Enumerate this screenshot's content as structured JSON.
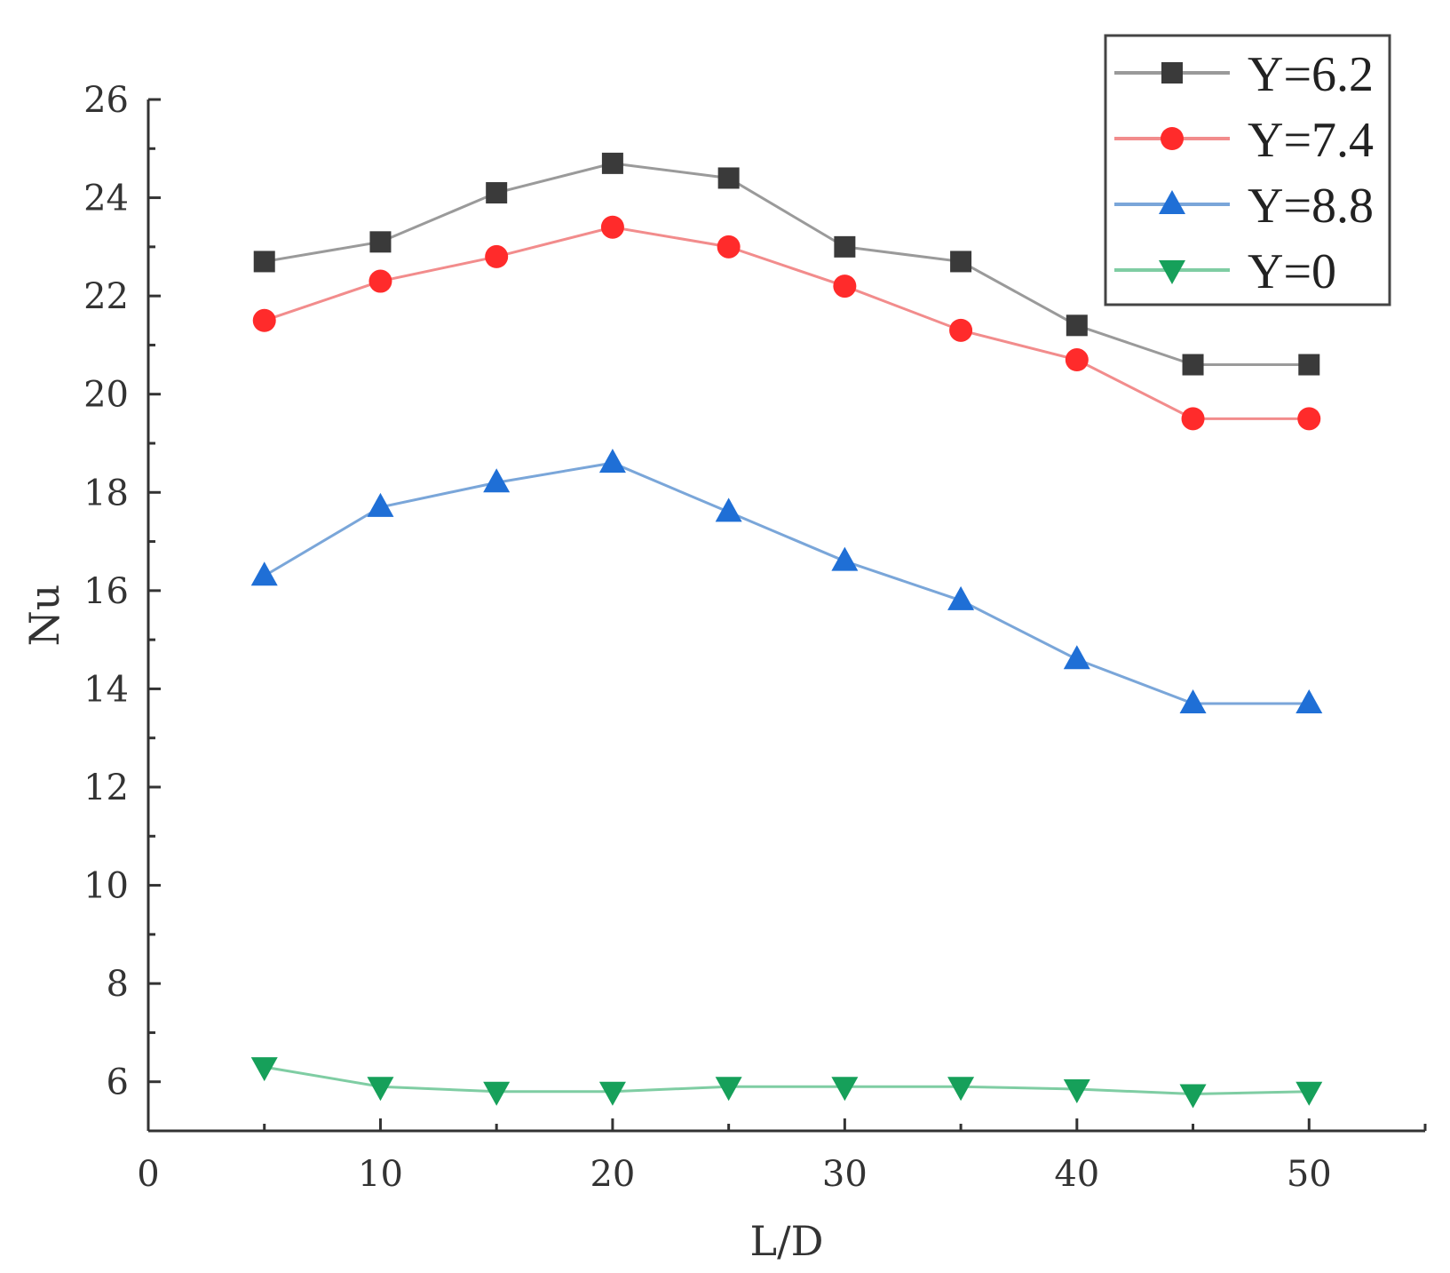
{
  "chart_data": {
    "type": "line",
    "title": "",
    "xlabel": "L/D",
    "ylabel": "Nu",
    "xlim": [
      0,
      55
    ],
    "ylim": [
      5,
      26
    ],
    "xticks": [
      0,
      10,
      20,
      30,
      40,
      50
    ],
    "yticks": [
      6,
      8,
      10,
      12,
      14,
      16,
      18,
      20,
      22,
      24,
      26
    ],
    "x": [
      5,
      10,
      15,
      20,
      25,
      30,
      35,
      40,
      45,
      50
    ],
    "legend_position": "top-right",
    "grid": false,
    "series": [
      {
        "name": "Y=6.2",
        "marker": "square",
        "color": "#3a3a3a",
        "line_color": "#9a9a9a",
        "values": [
          22.7,
          23.1,
          24.1,
          24.7,
          24.4,
          23.0,
          22.7,
          21.4,
          20.6,
          20.6
        ]
      },
      {
        "name": "Y=7.4",
        "marker": "circle",
        "color": "#ff2b2b",
        "line_color": "#f28c8c",
        "values": [
          21.5,
          22.3,
          22.8,
          23.4,
          23.0,
          22.2,
          21.3,
          20.7,
          19.5,
          19.5
        ]
      },
      {
        "name": "Y=8.8",
        "marker": "triangle-up",
        "color": "#1f6fd6",
        "line_color": "#7aa6d9",
        "values": [
          16.3,
          17.7,
          18.2,
          18.6,
          17.6,
          16.6,
          15.8,
          14.6,
          13.7,
          13.7
        ]
      },
      {
        "name": "Y=0",
        "marker": "triangle-down",
        "color": "#16a05a",
        "line_color": "#7fcda3",
        "values": [
          6.3,
          5.9,
          5.8,
          5.8,
          5.9,
          5.9,
          5.9,
          5.85,
          5.75,
          5.8
        ]
      }
    ]
  }
}
